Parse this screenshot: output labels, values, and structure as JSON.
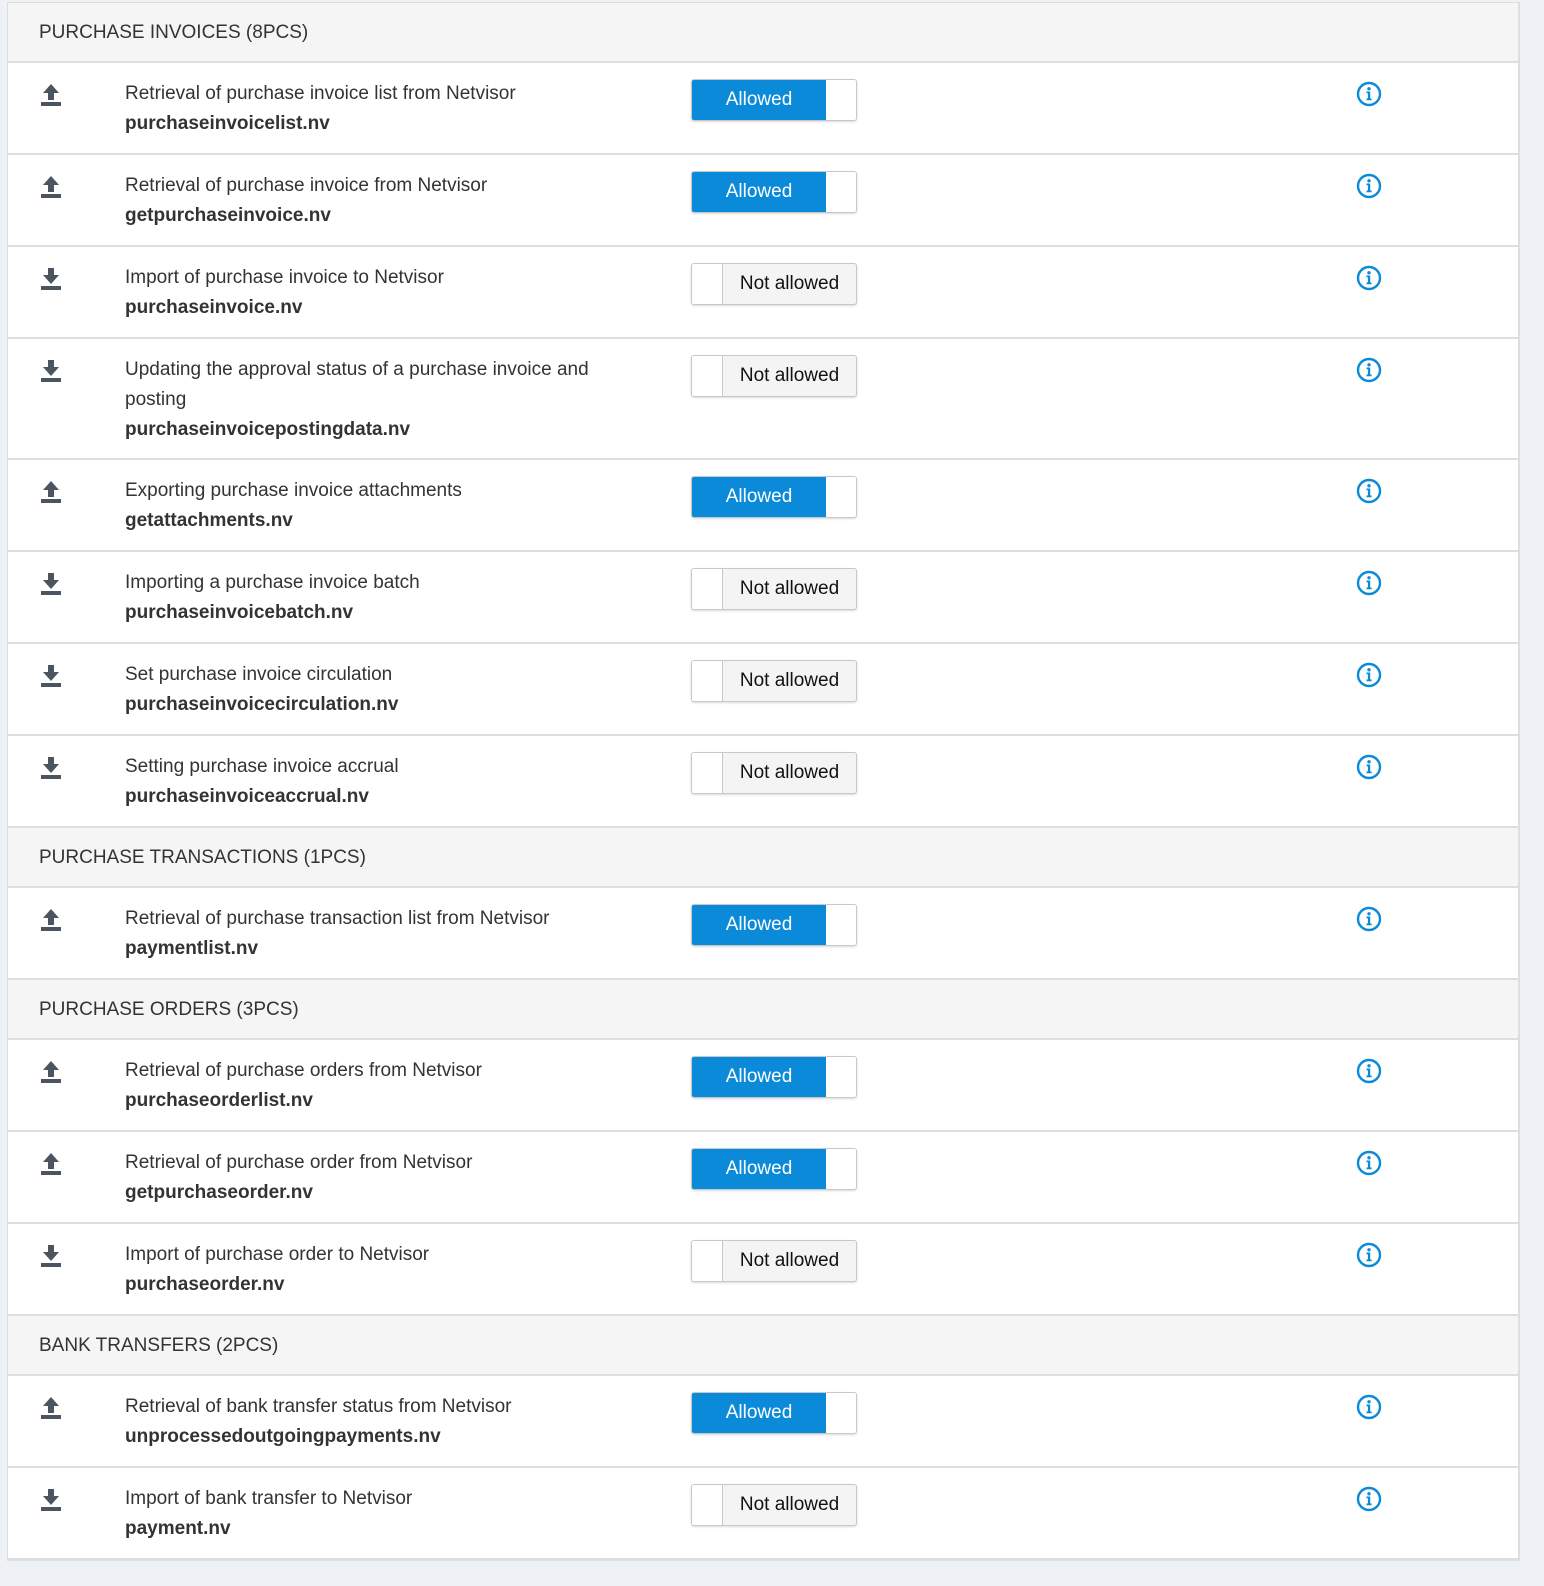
{
  "colors": {
    "accent": "#0a8ad8",
    "icon": "#4a5560"
  },
  "sections": [
    {
      "title": "PURCHASE INVOICES (8PCS)",
      "items": [
        {
          "direction": "upload-icon",
          "description": "Retrieval of purchase invoice list from Netvisor",
          "file": "purchaseinvoicelist.nv",
          "status": "Allowed",
          "allowed": true
        },
        {
          "direction": "upload-icon",
          "description": "Retrieval of purchase invoice from Netvisor",
          "file": "getpurchaseinvoice.nv",
          "status": "Allowed",
          "allowed": true
        },
        {
          "direction": "download-icon",
          "description": "Import of purchase invoice to Netvisor",
          "file": "purchaseinvoice.nv",
          "status": "Not allowed",
          "allowed": false
        },
        {
          "direction": "download-icon",
          "description": "Updating the approval status of a purchase invoice and posting",
          "file": "purchaseinvoicepostingdata.nv",
          "status": "Not allowed",
          "allowed": false
        },
        {
          "direction": "upload-icon",
          "description": "Exporting purchase invoice attachments",
          "file": "getattachments.nv",
          "status": "Allowed",
          "allowed": true
        },
        {
          "direction": "download-icon",
          "description": "Importing a purchase invoice batch",
          "file": "purchaseinvoicebatch.nv",
          "status": "Not allowed",
          "allowed": false
        },
        {
          "direction": "download-icon",
          "description": "Set purchase invoice circulation",
          "file": "purchaseinvoicecirculation.nv",
          "status": "Not allowed",
          "allowed": false
        },
        {
          "direction": "download-icon",
          "description": "Setting purchase invoice accrual",
          "file": "purchaseinvoiceaccrual.nv",
          "status": "Not allowed",
          "allowed": false
        }
      ]
    },
    {
      "title": "PURCHASE TRANSACTIONS (1PCS)",
      "items": [
        {
          "direction": "upload-icon",
          "description": "Retrieval of purchase transaction list from Netvisor",
          "file": "paymentlist.nv",
          "status": "Allowed",
          "allowed": true
        }
      ]
    },
    {
      "title": "PURCHASE ORDERS (3PCS)",
      "items": [
        {
          "direction": "upload-icon",
          "description": "Retrieval of purchase orders from Netvisor",
          "file": "purchaseorderlist.nv",
          "status": "Allowed",
          "allowed": true
        },
        {
          "direction": "upload-icon",
          "description": "Retrieval of purchase order from Netvisor",
          "file": "getpurchaseorder.nv",
          "status": "Allowed",
          "allowed": true
        },
        {
          "direction": "download-icon",
          "description": "Import of purchase order to Netvisor",
          "file": "purchaseorder.nv",
          "status": "Not allowed",
          "allowed": false
        }
      ]
    },
    {
      "title": "BANK TRANSFERS (2PCS)",
      "items": [
        {
          "direction": "upload-icon",
          "description": "Retrieval of bank transfer status from Netvisor",
          "file": "unprocessedoutgoingpayments.nv",
          "status": "Allowed",
          "allowed": true
        },
        {
          "direction": "download-icon",
          "description": "Import of bank transfer to Netvisor",
          "file": "payment.nv",
          "status": "Not allowed",
          "allowed": false
        }
      ]
    }
  ]
}
